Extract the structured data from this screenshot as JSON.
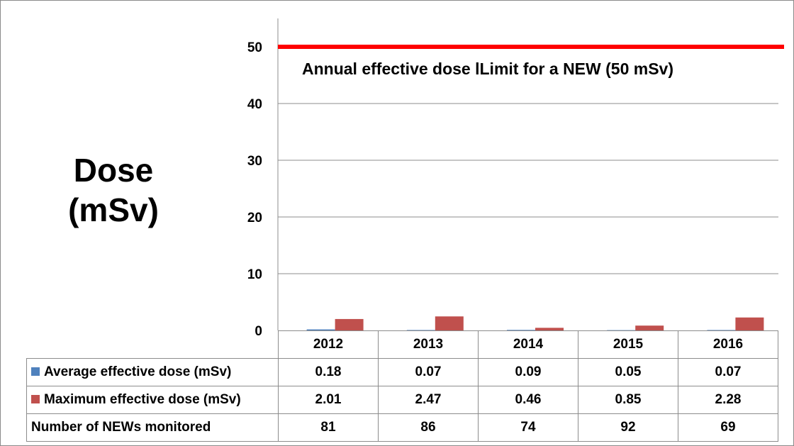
{
  "chart_data": {
    "type": "bar",
    "ylabel": [
      "Dose",
      "(mSv)"
    ],
    "ylim": [
      0,
      55
    ],
    "yticks": [
      0,
      10,
      20,
      30,
      40,
      50
    ],
    "grid": true,
    "categories": [
      "2012",
      "2013",
      "2014",
      "2015",
      "2016"
    ],
    "series": [
      {
        "name": "Average effective dose (mSv)",
        "color": "#4f81bd",
        "values": [
          0.18,
          0.07,
          0.09,
          0.05,
          0.07
        ],
        "labels": [
          "0.18",
          "0.07",
          "0.09",
          "0.05",
          "0.07"
        ]
      },
      {
        "name": "Maximum effective dose (mSv)",
        "color": "#c0504d",
        "values": [
          2.01,
          2.47,
          0.46,
          0.85,
          2.28
        ],
        "labels": [
          "2.01",
          "2.47",
          "0.46",
          "0.85",
          "2.28"
        ]
      }
    ],
    "table_rows": [
      {
        "label": "Number of NEWs monitored",
        "values": [
          "81",
          "86",
          "74",
          "92",
          "69"
        ]
      }
    ],
    "reference_line": {
      "value": 50,
      "color": "#ff0000",
      "label": "Annual effective dose lLimit for a NEW (50 mSv)"
    }
  }
}
